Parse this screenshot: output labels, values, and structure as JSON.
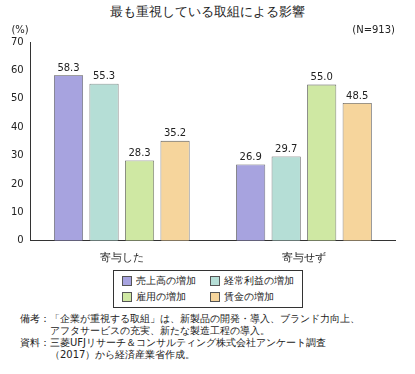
{
  "chart_data": {
    "type": "bar",
    "title": "最も重視している取組による影響",
    "y_unit_label": "(%)",
    "annotation": "(N=913)",
    "categories": [
      "寄与した",
      "寄与せず"
    ],
    "series": [
      {
        "name": "売上高の増加",
        "color": "#a7a3df",
        "values": [
          58.3,
          26.9
        ]
      },
      {
        "name": "経常利益の増加",
        "color": "#b5ded6",
        "values": [
          55.3,
          29.7
        ]
      },
      {
        "name": "雇用の増加",
        "color": "#cfe8a3",
        "values": [
          28.3,
          55.0
        ],
        "value_labels": [
          "28.3",
          "55.0"
        ]
      },
      {
        "name": "賃金の増加",
        "color": "#f6d59c",
        "values": [
          35.2,
          48.5
        ]
      }
    ],
    "ylim": [
      0,
      70
    ],
    "yticks": [
      0,
      10,
      20,
      30,
      40,
      50,
      60,
      70
    ],
    "grid": false,
    "legend": "bottom",
    "data_labels": true,
    "notes": [
      {
        "label": "備考：",
        "lines": [
          "「企業が重視する取組」は、新製品の開発・導入、ブランド力向上、",
          "アフタサービスの充実、新たな製造工程の導入。"
        ]
      },
      {
        "label": "資料：",
        "lines": [
          "三菱UFJリサーチ＆コンサルティング株式会社アンケート調査",
          "（2017）から経済産業省作成。"
        ]
      }
    ]
  }
}
